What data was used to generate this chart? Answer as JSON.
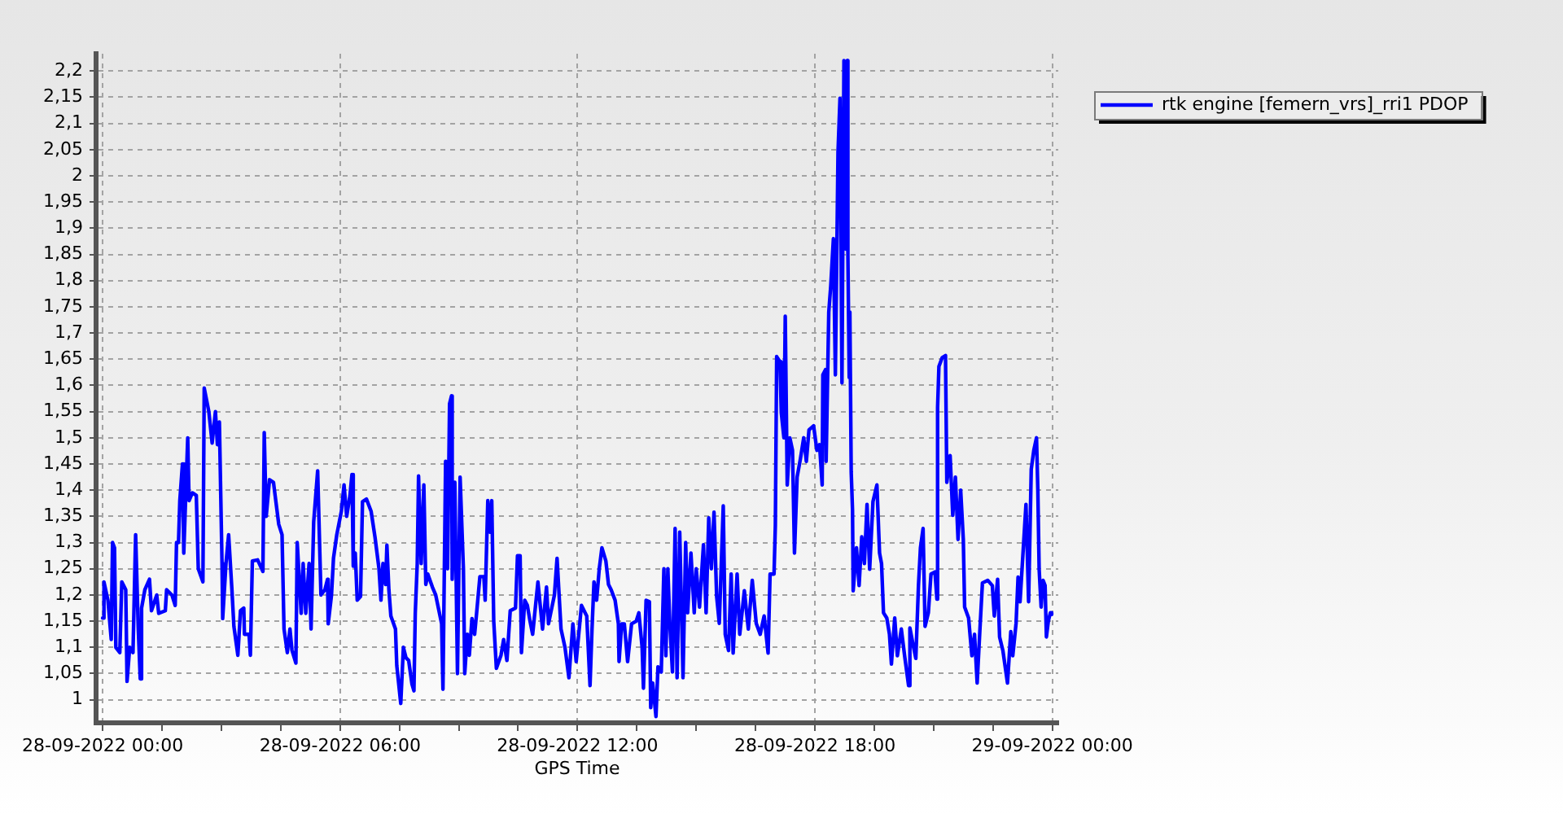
{
  "chart_data": {
    "type": "line",
    "xlabel": "GPS Time",
    "x": [
      "2022-09-28T00:00",
      "2022-09-28T00:02",
      "2022-09-28T00:08",
      "2022-09-28T00:13",
      "2022-09-28T00:15",
      "2022-09-28T00:18",
      "2022-09-28T00:20",
      "2022-09-28T00:26",
      "2022-09-28T00:29",
      "2022-09-28T00:35",
      "2022-09-28T00:37",
      "2022-09-28T00:41",
      "2022-09-28T00:46",
      "2022-09-28T00:50",
      "2022-09-28T00:54",
      "2022-09-28T00:57",
      "2022-09-28T00:59",
      "2022-09-28T01:04",
      "2022-09-28T01:11",
      "2022-09-28T01:14",
      "2022-09-28T01:22",
      "2022-09-28T01:25",
      "2022-09-28T01:35",
      "2022-09-28T01:37",
      "2022-09-28T01:45",
      "2022-09-28T01:50",
      "2022-09-28T01:52",
      "2022-09-28T01:55",
      "2022-09-28T01:57",
      "2022-09-28T02:01",
      "2022-09-28T02:03",
      "2022-09-28T02:09",
      "2022-09-28T02:11",
      "2022-09-28T02:16",
      "2022-09-28T02:22",
      "2022-09-28T02:25",
      "2022-09-28T02:32",
      "2022-09-28T02:34",
      "2022-09-28T02:41",
      "2022-09-28T02:46",
      "2022-09-28T02:51",
      "2022-09-28T02:54",
      "2022-09-28T02:57",
      "2022-09-28T03:01",
      "2022-09-28T03:02",
      "2022-09-28T03:07",
      "2022-09-28T03:11",
      "2022-09-28T03:16",
      "2022-09-28T03:19",
      "2022-09-28T03:25",
      "2022-09-28T03:29",
      "2022-09-28T03:34",
      "2022-09-28T03:35",
      "2022-09-28T03:42",
      "2022-09-28T03:44",
      "2022-09-28T03:47",
      "2022-09-28T03:55",
      "2022-09-28T04:03",
      "2022-09-28T04:05",
      "2022-09-28T04:08",
      "2022-09-28T04:13",
      "2022-09-28T04:19",
      "2022-09-28T04:27",
      "2022-09-28T04:32",
      "2022-09-28T04:35",
      "2022-09-28T04:40",
      "2022-09-28T04:44",
      "2022-09-28T04:47",
      "2022-09-28T04:53",
      "2022-09-28T04:55",
      "2022-09-28T05:01",
      "2022-09-28T05:04",
      "2022-09-28T05:08",
      "2022-09-28T05:13",
      "2022-09-28T05:16",
      "2022-09-28T05:20",
      "2022-09-28T05:26",
      "2022-09-28T05:31",
      "2022-09-28T05:37",
      "2022-09-28T05:41",
      "2022-09-28T05:42",
      "2022-09-28T05:47",
      "2022-09-28T05:50",
      "2022-09-28T05:55",
      "2022-09-28T06:02",
      "2022-09-28T06:06",
      "2022-09-28T06:10",
      "2022-09-28T06:15",
      "2022-09-28T06:18",
      "2022-09-28T06:20",
      "2022-09-28T06:23",
      "2022-09-28T06:26",
      "2022-09-28T06:31",
      "2022-09-28T06:34",
      "2022-09-28T06:40",
      "2022-09-28T06:47",
      "2022-09-28T06:53",
      "2022-09-28T06:59",
      "2022-09-28T07:02",
      "2022-09-28T07:05",
      "2022-09-28T07:09",
      "2022-09-28T07:11",
      "2022-09-28T07:14",
      "2022-09-28T07:17",
      "2022-09-28T07:24",
      "2022-09-28T07:26",
      "2022-09-28T07:32",
      "2022-09-28T07:36",
      "2022-09-28T07:40",
      "2022-09-28T07:44",
      "2022-09-28T07:49",
      "2022-09-28T07:52",
      "2022-09-28T07:54",
      "2022-09-28T07:57",
      "2022-09-28T07:59",
      "2022-09-28T08:03",
      "2022-09-28T08:07",
      "2022-09-28T08:10",
      "2022-09-28T08:13",
      "2022-09-28T08:20",
      "2022-09-28T08:25",
      "2022-09-28T08:34",
      "2022-09-28T08:36",
      "2022-09-28T08:40",
      "2022-09-28T08:43",
      "2022-09-28T08:46",
      "2022-09-28T08:49",
      "2022-09-28T08:50",
      "2022-09-28T08:54",
      "2022-09-28T08:58",
      "2022-09-28T09:02",
      "2022-09-28T09:07",
      "2022-09-28T09:09",
      "2022-09-28T09:13",
      "2022-09-28T09:16",
      "2022-09-28T09:20",
      "2022-09-28T09:24",
      "2022-09-28T09:27",
      "2022-09-28T09:32",
      "2022-09-28T09:38",
      "2022-09-28T09:40",
      "2022-09-28T09:44",
      "2022-09-28T09:47",
      "2022-09-28T09:50",
      "2022-09-28T09:53",
      "2022-09-28T09:57",
      "2022-09-28T10:04",
      "2022-09-28T10:08",
      "2022-09-28T10:13",
      "2022-09-28T10:18",
      "2022-09-28T10:26",
      "2022-09-28T10:29",
      "2022-09-28T10:33",
      "2022-09-28T10:35",
      "2022-09-28T10:40",
      "2022-09-28T10:44",
      "2022-09-28T10:48",
      "2022-09-28T10:52",
      "2022-09-28T11:00",
      "2022-09-28T11:07",
      "2022-09-28T11:13",
      "2022-09-28T11:16",
      "2022-09-28T11:25",
      "2022-09-28T11:29",
      "2022-09-28T11:35",
      "2022-09-28T11:41",
      "2022-09-28T11:47",
      "2022-09-28T11:53",
      "2022-09-28T11:58",
      "2022-09-28T12:06",
      "2022-09-28T12:14",
      "2022-09-28T12:19",
      "2022-09-28T12:22",
      "2022-09-28T12:25",
      "2022-09-28T12:29",
      "2022-09-28T12:33",
      "2022-09-28T12:37",
      "2022-09-28T12:43",
      "2022-09-28T12:47",
      "2022-09-28T12:51",
      "2022-09-28T12:57",
      "2022-09-28T13:02",
      "2022-09-28T13:03",
      "2022-09-28T13:07",
      "2022-09-28T13:11",
      "2022-09-28T13:16",
      "2022-09-28T13:22",
      "2022-09-28T13:29",
      "2022-09-28T13:33",
      "2022-09-28T13:38",
      "2022-09-28T13:40",
      "2022-09-28T13:44",
      "2022-09-28T13:49",
      "2022-09-28T13:51",
      "2022-09-28T13:54",
      "2022-09-28T13:59",
      "2022-09-28T14:02",
      "2022-09-28T14:07",
      "2022-09-28T14:11",
      "2022-09-28T14:14",
      "2022-09-28T14:17",
      "2022-09-28T14:20",
      "2022-09-28T14:24",
      "2022-09-28T14:28",
      "2022-09-28T14:31",
      "2022-09-28T14:35",
      "2022-09-28T14:40",
      "2022-09-28T14:44",
      "2022-09-28T14:47",
      "2022-09-28T14:52",
      "2022-09-28T14:57",
      "2022-09-28T15:00",
      "2022-09-28T15:05",
      "2022-09-28T15:11",
      "2022-09-28T15:15",
      "2022-09-28T15:19",
      "2022-09-28T15:23",
      "2022-09-28T15:27",
      "2022-09-28T15:31",
      "2022-09-28T15:35",
      "2022-09-28T15:41",
      "2022-09-28T15:44",
      "2022-09-28T15:49",
      "2022-09-28T15:53",
      "2022-09-28T15:56",
      "2022-09-28T16:02",
      "2022-09-28T16:06",
      "2022-09-28T16:13",
      "2022-09-28T16:19",
      "2022-09-28T16:25",
      "2022-09-28T16:31",
      "2022-09-28T16:37",
      "2022-09-28T16:43",
      "2022-09-28T16:49",
      "2022-09-28T16:52",
      "2022-09-28T16:58",
      "2022-09-28T17:00",
      "2022-09-28T17:02",
      "2022-09-28T17:07",
      "2022-09-28T17:09",
      "2022-09-28T17:13",
      "2022-09-28T17:15",
      "2022-09-28T17:18",
      "2022-09-28T17:22",
      "2022-09-28T17:26",
      "2022-09-28T17:29",
      "2022-09-28T17:33",
      "2022-09-28T17:38",
      "2022-09-28T17:43",
      "2022-09-28T17:47",
      "2022-09-28T17:51",
      "2022-09-28T17:58",
      "2022-09-28T18:03",
      "2022-09-28T18:07",
      "2022-09-28T18:11",
      "2022-09-28T18:12",
      "2022-09-28T18:16",
      "2022-09-28T18:17",
      "2022-09-28T18:21",
      "2022-09-28T18:24",
      "2022-09-28T18:28",
      "2022-09-28T18:31",
      "2022-09-28T18:35",
      "2022-09-28T18:38",
      "2022-09-28T18:41",
      "2022-09-28T18:44",
      "2022-09-28T18:47",
      "2022-09-28T18:49",
      "2022-09-28T18:50",
      "2022-09-28T18:52",
      "2022-09-28T18:53",
      "2022-09-28T18:55",
      "2022-09-28T18:57",
      "2022-09-28T18:58",
      "2022-09-28T19:03",
      "2022-09-28T19:07",
      "2022-09-28T19:11",
      "2022-09-28T19:15",
      "2022-09-28T19:19",
      "2022-09-28T19:23",
      "2022-09-28T19:28",
      "2022-09-28T19:34",
      "2022-09-28T19:38",
      "2022-09-28T19:41",
      "2022-09-28T19:44",
      "2022-09-28T19:49",
      "2022-09-28T19:53",
      "2022-09-28T19:56",
      "2022-09-28T20:01",
      "2022-09-28T20:05",
      "2022-09-28T20:11",
      "2022-09-28T20:16",
      "2022-09-28T20:22",
      "2022-09-28T20:24",
      "2022-09-28T20:29",
      "2022-09-28T20:33",
      "2022-09-28T20:37",
      "2022-09-28T20:40",
      "2022-09-28T20:44",
      "2022-09-28T20:47",
      "2022-09-28T20:52",
      "2022-09-28T20:56",
      "2022-09-28T21:02",
      "2022-09-28T21:05",
      "2022-09-28T21:06",
      "2022-09-28T21:08",
      "2022-09-28T21:13",
      "2022-09-28T21:18",
      "2022-09-28T21:20",
      "2022-09-28T21:25",
      "2022-09-28T21:29",
      "2022-09-28T21:33",
      "2022-09-28T21:37",
      "2022-09-28T21:41",
      "2022-09-28T21:45",
      "2022-09-28T21:47",
      "2022-09-28T21:53",
      "2022-09-28T21:58",
      "2022-09-28T22:02",
      "2022-09-28T22:06",
      "2022-09-28T22:10",
      "2022-09-28T22:14",
      "2022-09-28T22:22",
      "2022-09-28T22:29",
      "2022-09-28T22:32",
      "2022-09-28T22:37",
      "2022-09-28T22:40",
      "2022-09-28T22:45",
      "2022-09-28T22:52",
      "2022-09-28T22:57",
      "2022-09-28T23:00",
      "2022-09-28T23:05",
      "2022-09-28T23:08",
      "2022-09-28T23:11",
      "2022-09-28T23:16",
      "2022-09-28T23:20",
      "2022-09-28T23:24",
      "2022-09-28T23:28",
      "2022-09-28T23:32",
      "2022-09-28T23:36",
      "2022-09-28T23:38",
      "2022-09-28T23:40",
      "2022-09-28T23:43",
      "2022-09-28T23:46",
      "2022-09-28T23:49",
      "2022-09-28T23:51",
      "2022-09-28T23:54",
      "2022-09-28T23:57",
      "2022-09-28T23:59"
    ],
    "series": [
      {
        "name": "rtk engine [femern_vrs]_rri1 PDOP",
        "color": "#0000ff",
        "values": [
          1.156,
          1.225,
          1.19,
          1.115,
          1.3,
          1.29,
          1.1,
          1.09,
          1.225,
          1.21,
          1.035,
          1.1,
          1.09,
          1.315,
          1.135,
          1.04,
          1.175,
          1.21,
          1.23,
          1.17,
          1.2,
          1.165,
          1.17,
          1.21,
          1.2,
          1.18,
          1.3,
          1.3,
          1.38,
          1.45,
          1.28,
          1.5,
          1.38,
          1.395,
          1.39,
          1.25,
          1.225,
          1.595,
          1.55,
          1.49,
          1.55,
          1.487,
          1.53,
          1.26,
          1.155,
          1.26,
          1.315,
          1.21,
          1.14,
          1.085,
          1.17,
          1.175,
          1.125,
          1.125,
          1.085,
          1.265,
          1.267,
          1.245,
          1.51,
          1.35,
          1.42,
          1.415,
          1.335,
          1.315,
          1.135,
          1.09,
          1.135,
          1.095,
          1.07,
          1.3,
          1.165,
          1.26,
          1.165,
          1.26,
          1.135,
          1.34,
          1.437,
          1.2,
          1.21,
          1.23,
          1.145,
          1.2,
          1.27,
          1.315,
          1.36,
          1.41,
          1.35,
          1.39,
          1.43,
          1.255,
          1.28,
          1.19,
          1.197,
          1.378,
          1.383,
          1.36,
          1.31,
          1.25,
          1.19,
          1.26,
          1.22,
          1.295,
          1.21,
          1.16,
          1.135,
          1.065,
          0.993,
          1.1,
          1.08,
          1.075,
          1.03,
          1.017,
          1.165,
          1.26,
          1.427,
          1.26,
          1.41,
          1.22,
          1.24,
          1.215,
          1.2,
          1.145,
          1.02,
          1.455,
          1.25,
          1.565,
          1.58,
          1.23,
          1.415,
          1.05,
          1.425,
          1.25,
          1.05,
          1.125,
          1.085,
          1.155,
          1.125,
          1.165,
          1.235,
          1.235,
          1.19,
          1.38,
          1.32,
          1.38,
          1.15,
          1.06,
          1.085,
          1.115,
          1.075,
          1.17,
          1.175,
          1.275,
          1.275,
          1.09,
          1.19,
          1.18,
          1.15,
          1.125,
          1.225,
          1.135,
          1.215,
          1.145,
          1.2,
          1.27,
          1.135,
          1.1,
          1.042,
          1.145,
          1.073,
          1.18,
          1.16,
          1.027,
          1.135,
          1.225,
          1.19,
          1.25,
          1.29,
          1.265,
          1.22,
          1.21,
          1.19,
          1.145,
          1.073,
          1.145,
          1.145,
          1.073,
          1.145,
          1.15,
          1.166,
          1.1,
          1.022,
          1.19,
          1.187,
          0.985,
          1.032,
          0.968,
          1.063,
          1.053,
          1.25,
          1.084,
          1.25,
          1.145,
          1.053,
          1.327,
          1.042,
          1.32,
          1.042,
          1.3,
          1.166,
          1.28,
          1.166,
          1.25,
          1.177,
          1.296,
          1.166,
          1.347,
          1.25,
          1.358,
          1.197,
          1.146,
          1.37,
          1.125,
          1.094,
          1.24,
          1.089,
          1.24,
          1.125,
          1.208,
          1.135,
          1.228,
          1.146,
          1.125,
          1.16,
          1.089,
          1.24,
          1.24,
          1.333,
          1.655,
          1.645,
          1.548,
          1.5,
          1.732,
          1.41,
          1.5,
          1.476,
          1.28,
          1.425,
          1.46,
          1.5,
          1.455,
          1.515,
          1.523,
          1.476,
          1.487,
          1.41,
          1.62,
          1.63,
          1.455,
          1.74,
          1.79,
          1.88,
          1.62,
          2.045,
          2.148,
          1.605,
          2.22,
          1.86,
          2.22,
          1.848,
          1.615,
          1.74,
          1.435,
          1.363,
          1.208,
          1.29,
          1.218,
          1.311,
          1.26,
          1.373,
          1.249,
          1.378,
          1.41,
          1.28,
          1.26,
          1.166,
          1.156,
          1.125,
          1.068,
          1.156,
          1.084,
          1.135,
          1.084,
          1.027,
          1.137,
          1.104,
          1.079,
          1.218,
          1.29,
          1.327,
          1.14,
          1.166,
          1.24,
          1.244,
          1.192,
          1.558,
          1.636,
          1.653,
          1.657,
          1.415,
          1.466,
          1.352,
          1.425,
          1.306,
          1.4,
          1.306,
          1.177,
          1.156,
          1.084,
          1.125,
          1.032,
          1.13,
          1.223,
          1.228,
          1.218,
          1.16,
          1.23,
          1.12,
          1.094,
          1.032,
          1.13,
          1.084,
          1.146,
          1.234,
          1.187,
          1.29,
          1.373,
          1.187,
          1.44,
          1.477,
          1.5,
          1.4,
          1.249,
          1.177,
          1.228,
          1.218,
          1.12,
          1.151,
          1.166,
          1.163
        ]
      }
    ],
    "xlim": [
      "2022-09-27T23:50",
      "2022-09-29T00:09"
    ],
    "xticks": [
      {
        "value": "2022-09-28T00:00",
        "label": "28-09-2022 00:00"
      },
      {
        "value": "2022-09-28T01:30",
        "label": null
      },
      {
        "value": "2022-09-28T03:00",
        "label": null
      },
      {
        "value": "2022-09-28T04:30",
        "label": null
      },
      {
        "value": "2022-09-28T06:00",
        "label": "28-09-2022 06:00"
      },
      {
        "value": "2022-09-28T07:30",
        "label": null
      },
      {
        "value": "2022-09-28T09:00",
        "label": null
      },
      {
        "value": "2022-09-28T10:30",
        "label": null
      },
      {
        "value": "2022-09-28T12:00",
        "label": "28-09-2022 12:00"
      },
      {
        "value": "2022-09-28T13:30",
        "label": null
      },
      {
        "value": "2022-09-28T15:00",
        "label": null
      },
      {
        "value": "2022-09-28T16:30",
        "label": null
      },
      {
        "value": "2022-09-28T18:00",
        "label": "28-09-2022 18:00"
      },
      {
        "value": "2022-09-28T19:30",
        "label": null
      },
      {
        "value": "2022-09-28T21:00",
        "label": null
      },
      {
        "value": "2022-09-28T22:30",
        "label": null
      },
      {
        "value": "2022-09-29T00:00",
        "label": "29-09-2022 00:00"
      }
    ],
    "ylim": [
      0.956,
      2.233
    ],
    "yticks": [
      {
        "value": 1,
        "label": "1"
      },
      {
        "value": 1.05,
        "label": "1,05"
      },
      {
        "value": 1.1,
        "label": "1,1"
      },
      {
        "value": 1.15,
        "label": "1,15"
      },
      {
        "value": 1.2,
        "label": "1,2"
      },
      {
        "value": 1.25,
        "label": "1,25"
      },
      {
        "value": 1.3,
        "label": "1,3"
      },
      {
        "value": 1.35,
        "label": "1,35"
      },
      {
        "value": 1.4,
        "label": "1,4"
      },
      {
        "value": 1.45,
        "label": "1,45"
      },
      {
        "value": 1.5,
        "label": "1,5"
      },
      {
        "value": 1.55,
        "label": "1,55"
      },
      {
        "value": 1.6,
        "label": "1,6"
      },
      {
        "value": 1.65,
        "label": "1,65"
      },
      {
        "value": 1.7,
        "label": "1,7"
      },
      {
        "value": 1.75,
        "label": "1,75"
      },
      {
        "value": 1.8,
        "label": "1,8"
      },
      {
        "value": 1.85,
        "label": "1,85"
      },
      {
        "value": 1.9,
        "label": "1,9"
      },
      {
        "value": 1.95,
        "label": "1,95"
      },
      {
        "value": 2,
        "label": "2"
      },
      {
        "value": 2.05,
        "label": "2,05"
      },
      {
        "value": 2.1,
        "label": "2,1"
      },
      {
        "value": 2.15,
        "label": "2,15"
      },
      {
        "value": 2.2,
        "label": "2,2"
      }
    ],
    "grid": true,
    "legend": "top right",
    "marker": "none",
    "line_style": "solid"
  }
}
